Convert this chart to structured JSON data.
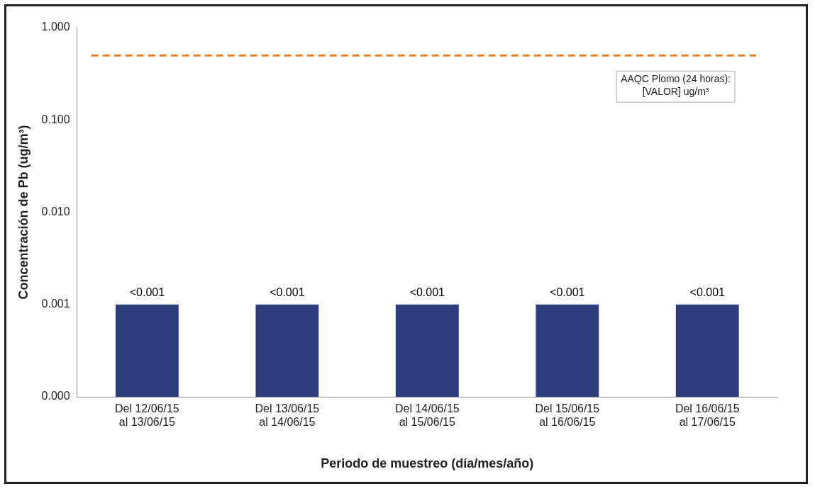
{
  "chart_data": {
    "type": "bar",
    "xlabel": "Periodo de muestreo (día/mes/año)",
    "ylabel": "Concentración de Pb (ug/m³)",
    "categories": [
      "Del 12/06/15\nal 13/06/15",
      "Del 13/06/15\nal 14/06/15",
      "Del 14/06/15\nal 15/06/15",
      "Del 15/06/15\nal 16/06/15",
      "Del 16/06/15\nal 17/06/15"
    ],
    "values": [
      0.001,
      0.001,
      0.001,
      0.001,
      0.001
    ],
    "value_labels": [
      "<0.001",
      "<0.001",
      "<0.001",
      "<0.001",
      "<0.001"
    ],
    "color": "#2e3f7c",
    "log": "y",
    "ylim": [
      0.0001,
      1
    ],
    "yticks": [
      {
        "value": 0.0001,
        "label": "0.000"
      },
      {
        "value": 0.001,
        "label": "0.001"
      },
      {
        "value": 0.01,
        "label": "0.010"
      },
      {
        "value": 0.1,
        "label": "0.100"
      },
      {
        "value": 1,
        "label": "1.000"
      }
    ],
    "grid": false,
    "ref_lines": [
      {
        "axis": "y",
        "value": 0.5,
        "label": "AAQC Plomo (24 horas):\n[VALOR] ug/m³",
        "color": "#f07f2a",
        "line_style": "dashed"
      }
    ]
  }
}
